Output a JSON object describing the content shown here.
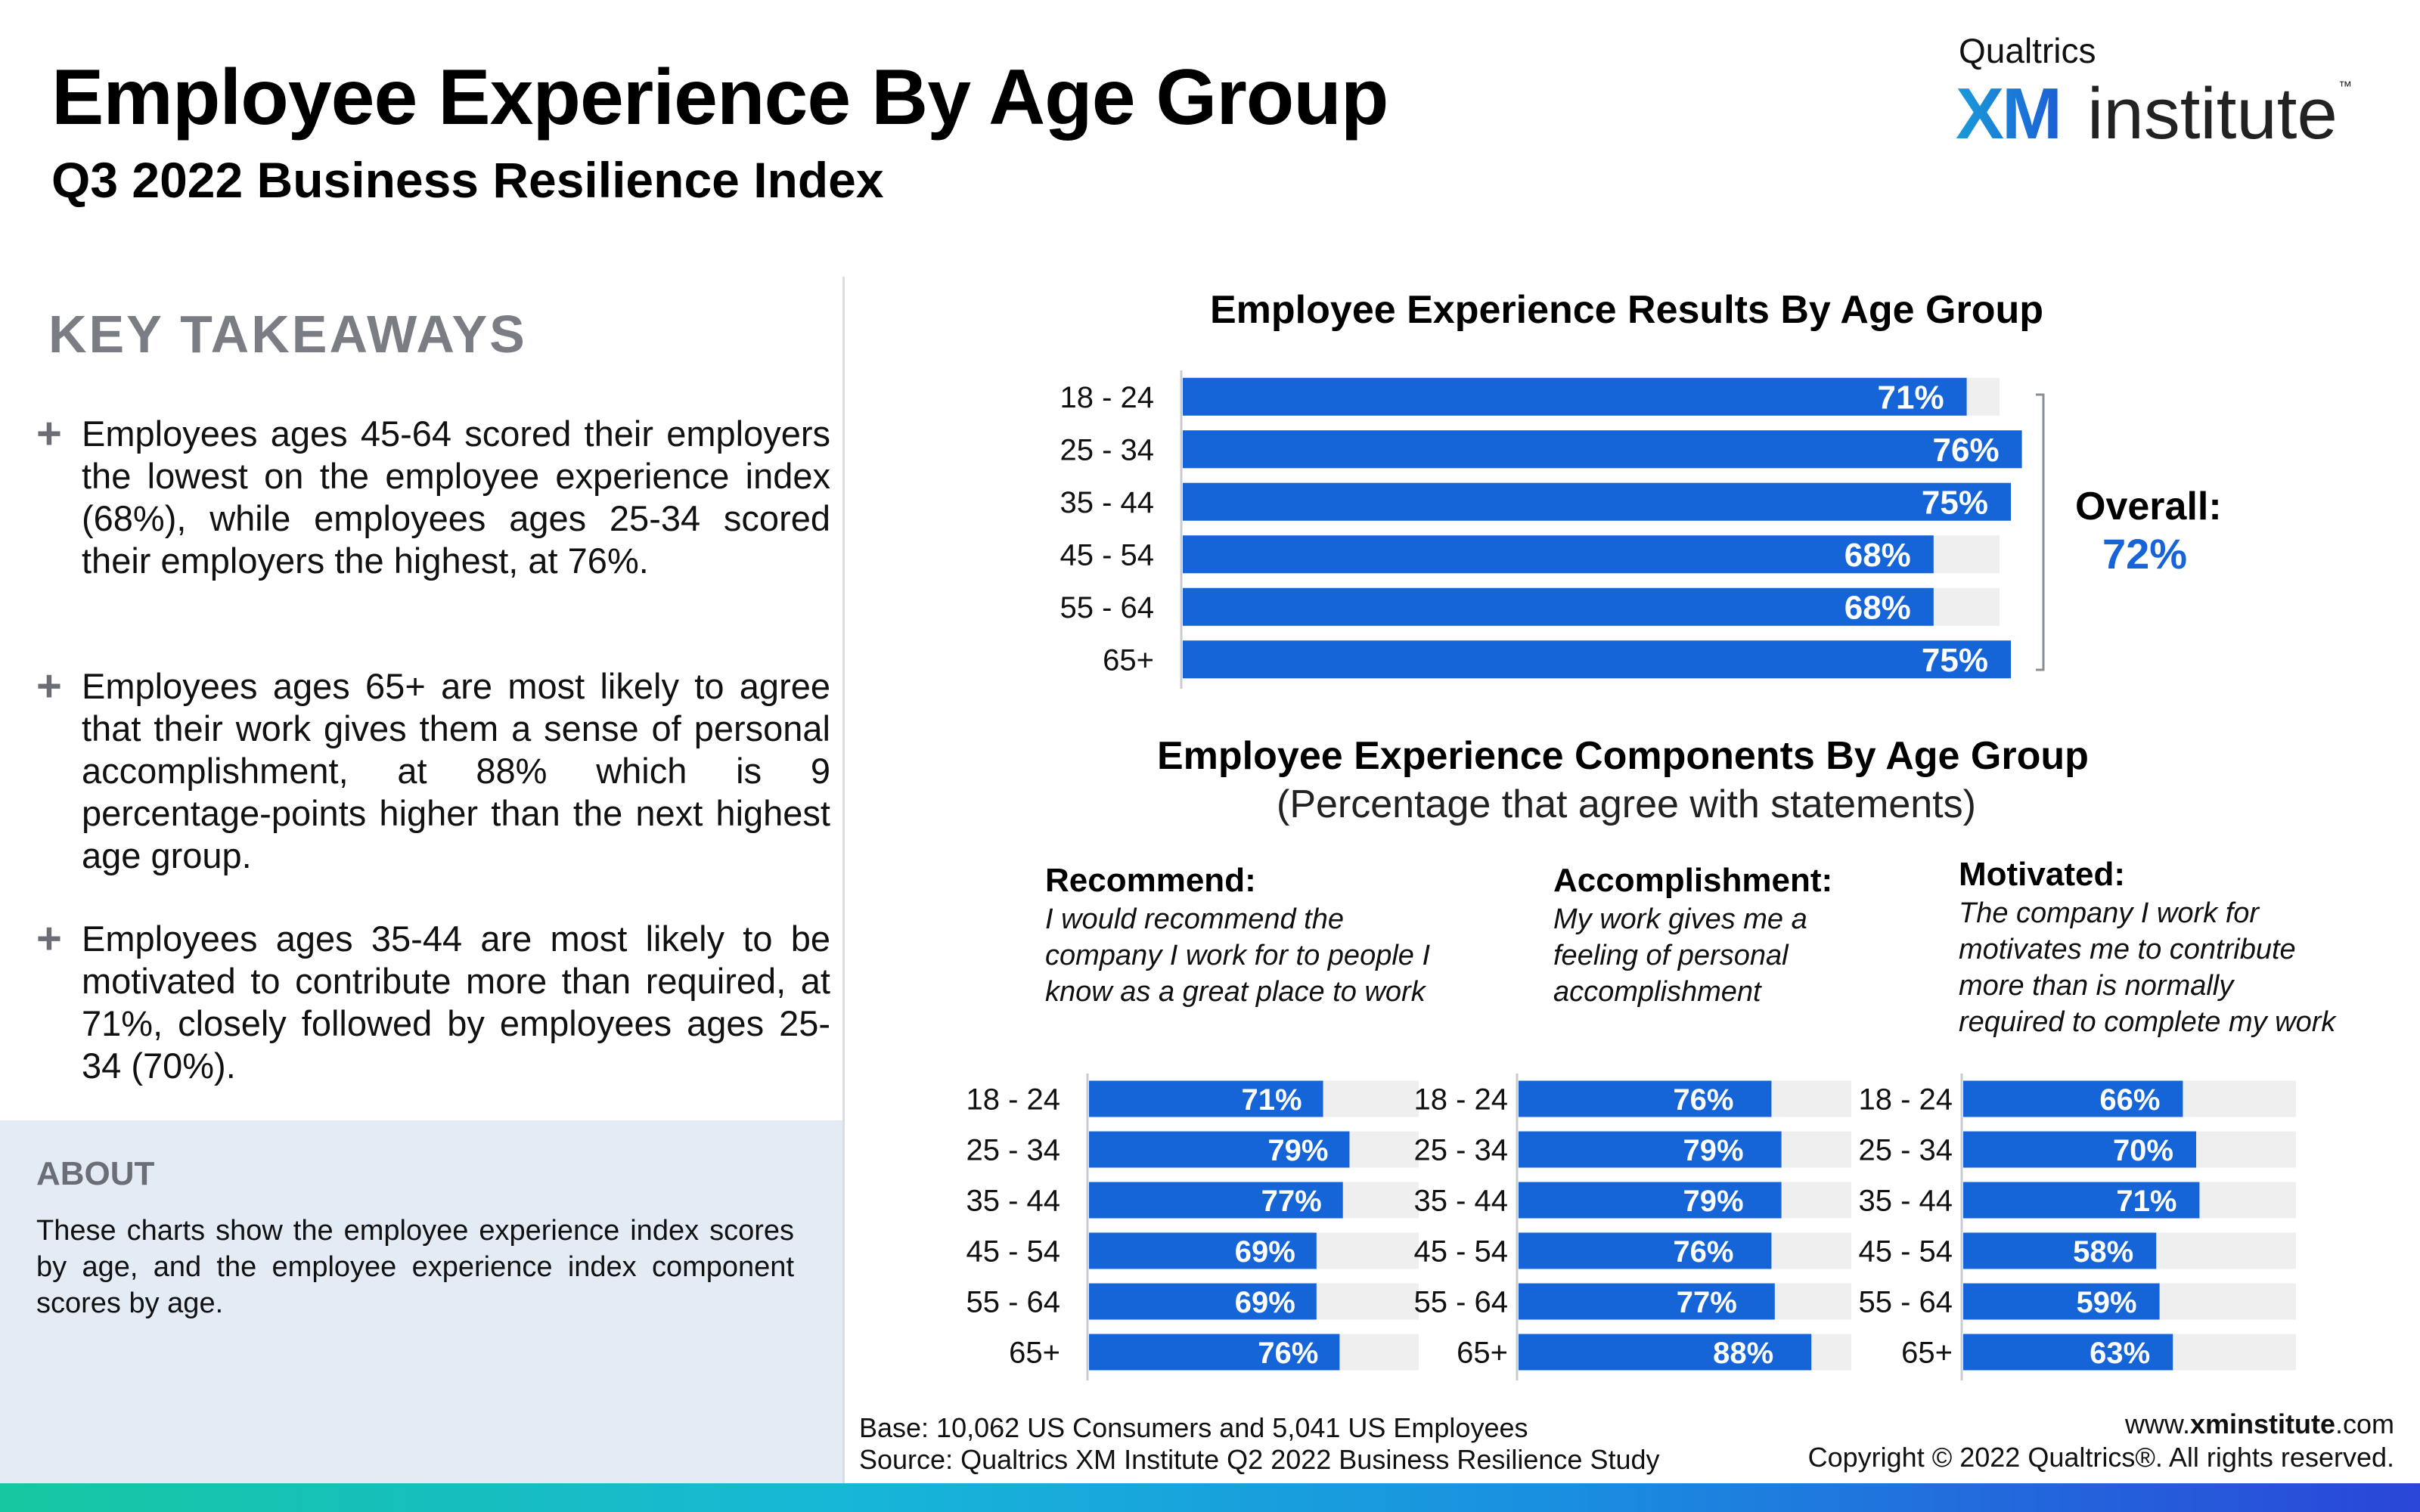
{
  "header": {
    "title": "Employee Experience By Age Group",
    "subtitle": "Q3 2022 Business Resilience Index"
  },
  "logo": {
    "qualtrics": "Qualtrics",
    "xm": "XM",
    "institute": "institute",
    "tm": "™"
  },
  "takeaways": {
    "heading": "KEY TAKEAWAYS",
    "bullet_icon": "plus-icon",
    "items": [
      "Employees ages 45-64 scored their employers the lowest on the employee experience index (68%), while employees ages 25-34 scored their employers the highest, at 76%.",
      "Employees ages 65+ are most likely to agree that their work gives them a sense of personal accomplishment, at 88% which is 9 percentage-points higher than the next highest age group.",
      "Employees ages 35-44 are most likely to be motivated to contribute more than required, at 71%, closely followed by employees ages 25-34 (70%)."
    ]
  },
  "about": {
    "heading": "ABOUT",
    "text": "These charts show the employee experience index scores by age, and the employee experience index component scores by age."
  },
  "overall": {
    "label": "Overall:",
    "value": "72%"
  },
  "components_header": {
    "title": "Employee Experience Components By Age Group",
    "subtitle": "(Percentage that agree with statements)"
  },
  "components": [
    {
      "heading": "Recommend:",
      "description": "I would recommend the\ncompany I work for to people I\nknow as a great place to work"
    },
    {
      "heading": "Accomplishment:",
      "description": "My work gives me a\nfeeling of personal\naccomplishment"
    },
    {
      "heading": "Motivated:",
      "description": "The company I work for\nmotivates me to contribute\nmore than is normally\nrequired to complete my work"
    }
  ],
  "footer": {
    "base": "Base: 10,062 US Consumers and 5,041 US Employees",
    "source": "Source: Qualtrics XM Institute Q2 2022 Business Resilience Study",
    "url_prefix": "www.",
    "url_bold": "xminstitute",
    "url_suffix": ".com",
    "copyright": "Copyright © 2022 Qualtrics®. All rights reserved."
  },
  "colors": {
    "bar": "#1565d8",
    "track": "#efefef",
    "overall_value": "#1565d8"
  },
  "chart_data": [
    {
      "type": "bar",
      "orientation": "horizontal",
      "title": "Employee Experience Results By Age Group",
      "categories": [
        "18 - 24",
        "25 - 34",
        "35 - 44",
        "45 - 54",
        "55 - 64",
        "65+"
      ],
      "values": [
        71,
        76,
        75,
        68,
        68,
        75
      ],
      "value_labels": [
        "71%",
        "76%",
        "75%",
        "68%",
        "68%",
        "75%"
      ],
      "xlim": [
        0,
        100
      ],
      "grid": false
    },
    {
      "type": "bar",
      "orientation": "horizontal",
      "title": "Recommend:",
      "categories": [
        "18 - 24",
        "25 - 34",
        "35 - 44",
        "45 - 54",
        "55 - 64",
        "65+"
      ],
      "values": [
        71,
        79,
        77,
        69,
        69,
        76
      ],
      "value_labels": [
        "71%",
        "79%",
        "77%",
        "69%",
        "69%",
        "76%"
      ],
      "xlim": [
        0,
        100
      ],
      "grid": false
    },
    {
      "type": "bar",
      "orientation": "horizontal",
      "title": "Accomplishment:",
      "categories": [
        "18 - 24",
        "25 - 34",
        "35 - 44",
        "45 - 54",
        "55 - 64",
        "65+"
      ],
      "values": [
        76,
        79,
        79,
        76,
        77,
        88
      ],
      "value_labels": [
        "76%",
        "79%",
        "79%",
        "76%",
        "77%",
        "88%"
      ],
      "xlim": [
        0,
        100
      ],
      "grid": false
    },
    {
      "type": "bar",
      "orientation": "horizontal",
      "title": "Motivated:",
      "categories": [
        "18 - 24",
        "25 - 34",
        "35 - 44",
        "45 - 54",
        "55 - 64",
        "65+"
      ],
      "values": [
        66,
        70,
        71,
        58,
        59,
        63
      ],
      "value_labels": [
        "66%",
        "70%",
        "71%",
        "58%",
        "59%",
        "63%"
      ],
      "xlim": [
        0,
        100
      ],
      "grid": false
    }
  ]
}
